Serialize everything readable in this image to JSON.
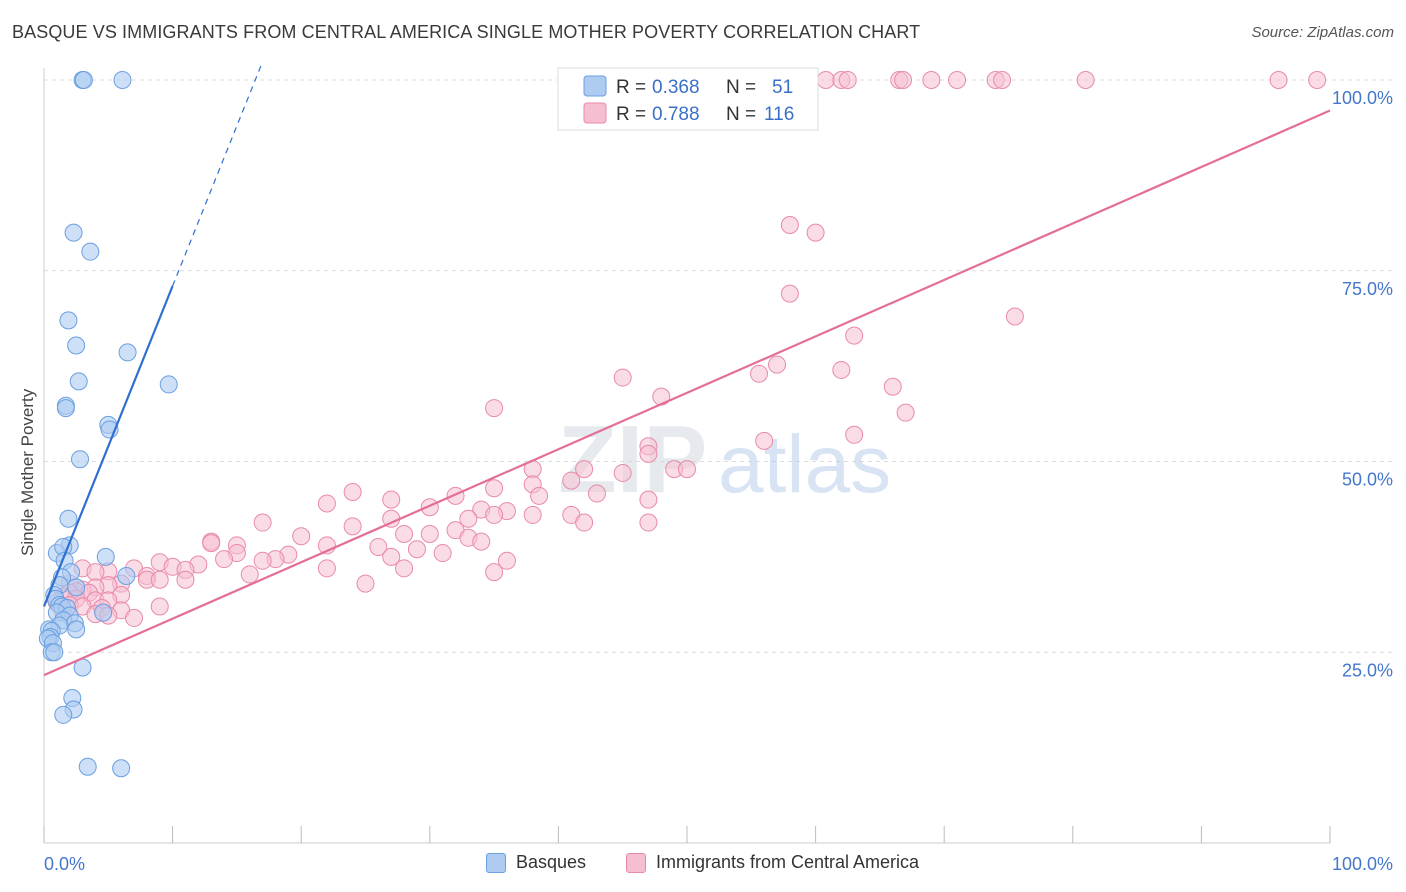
{
  "header": {
    "title": "BASQUE VS IMMIGRANTS FROM CENTRAL AMERICA SINGLE MOTHER POVERTY CORRELATION CHART",
    "source": "Source: ZipAtlas.com"
  },
  "watermark": {
    "zip": "ZIP",
    "atlas": "atlas"
  },
  "legend_top": [
    {
      "r_label": "R = ",
      "r_value": "0.368",
      "n_label": "N = ",
      "n_value": "51"
    },
    {
      "r_label": "R = ",
      "r_value": "0.788",
      "n_label": "N = ",
      "n_value": "116"
    }
  ],
  "legend_bottom": [
    {
      "label": "Basques"
    },
    {
      "label": "Immigrants from Central America"
    }
  ],
  "colors": {
    "basque_fill": "#aecbf2",
    "basque_stroke": "#6a9fe0",
    "basque_line": "#2f6fd1",
    "imm_fill": "#f6bfd1",
    "imm_stroke": "#e98aab",
    "imm_line": "#e36e98",
    "tick_label": "#4477cc",
    "grid": "#dcdcdc"
  },
  "chart_data": {
    "type": "scatter",
    "title": "BASQUE VS IMMIGRANTS FROM CENTRAL AMERICA SINGLE MOTHER POVERTY CORRELATION CHART",
    "xlabel": "",
    "ylabel": "Single Mother Poverty",
    "xlim": [
      0,
      1
    ],
    "ylim": [
      0.0,
      1.0
    ],
    "x_tick_labels": [
      "0.0%",
      "100.0%"
    ],
    "y_tick_labels": [
      {
        "value": 0.25,
        "label": "25.0%"
      },
      {
        "value": 0.5,
        "label": "50.0%"
      },
      {
        "value": 0.75,
        "label": "75.0%"
      },
      {
        "value": 1.0,
        "label": "100.0%"
      }
    ],
    "grid": true,
    "legend": "top-center",
    "series": [
      {
        "name": "Basques",
        "r": 0.368,
        "n": 51,
        "trend": {
          "x0": 0.0,
          "y0": 0.31,
          "x1": 0.1,
          "y1": 0.73,
          "dashed_to_x": 0.17
        },
        "points": [
          [
            0.03,
            1.0
          ],
          [
            0.031,
            1.0
          ],
          [
            0.061,
            1.0
          ],
          [
            0.023,
            0.8
          ],
          [
            0.036,
            0.775
          ],
          [
            0.019,
            0.685
          ],
          [
            0.025,
            0.652
          ],
          [
            0.065,
            0.643
          ],
          [
            0.027,
            0.605
          ],
          [
            0.097,
            0.601
          ],
          [
            0.017,
            0.573
          ],
          [
            0.017,
            0.57
          ],
          [
            0.05,
            0.548
          ],
          [
            0.051,
            0.542
          ],
          [
            0.028,
            0.503
          ],
          [
            0.019,
            0.425
          ],
          [
            0.02,
            0.39
          ],
          [
            0.01,
            0.38
          ],
          [
            0.015,
            0.388
          ],
          [
            0.048,
            0.375
          ],
          [
            0.016,
            0.37
          ],
          [
            0.021,
            0.355
          ],
          [
            0.014,
            0.348
          ],
          [
            0.064,
            0.35
          ],
          [
            0.025,
            0.335
          ],
          [
            0.012,
            0.338
          ],
          [
            0.008,
            0.325
          ],
          [
            0.009,
            0.32
          ],
          [
            0.012,
            0.312
          ],
          [
            0.014,
            0.31
          ],
          [
            0.018,
            0.308
          ],
          [
            0.046,
            0.302
          ],
          [
            0.01,
            0.302
          ],
          [
            0.02,
            0.298
          ],
          [
            0.015,
            0.292
          ],
          [
            0.024,
            0.288
          ],
          [
            0.012,
            0.285
          ],
          [
            0.004,
            0.28
          ],
          [
            0.006,
            0.278
          ],
          [
            0.025,
            0.28
          ],
          [
            0.005,
            0.27
          ],
          [
            0.003,
            0.268
          ],
          [
            0.007,
            0.262
          ],
          [
            0.006,
            0.25
          ],
          [
            0.008,
            0.25
          ],
          [
            0.03,
            0.23
          ],
          [
            0.022,
            0.19
          ],
          [
            0.023,
            0.175
          ],
          [
            0.015,
            0.168
          ],
          [
            0.034,
            0.1
          ],
          [
            0.06,
            0.098
          ]
        ]
      },
      {
        "name": "Immigrants from Central America",
        "r": 0.788,
        "n": 116,
        "trend": {
          "x0": 0.0,
          "y0": 0.22,
          "x1": 1.0,
          "y1": 0.96
        },
        "points": [
          [
            0.608,
            1.0
          ],
          [
            0.62,
            1.0
          ],
          [
            0.625,
            1.0
          ],
          [
            0.665,
            1.0
          ],
          [
            0.668,
            1.0
          ],
          [
            0.69,
            1.0
          ],
          [
            0.71,
            1.0
          ],
          [
            0.74,
            1.0
          ],
          [
            0.745,
            1.0
          ],
          [
            0.81,
            1.0
          ],
          [
            0.96,
            1.0
          ],
          [
            0.99,
            1.0
          ],
          [
            0.58,
            0.81
          ],
          [
            0.6,
            0.8
          ],
          [
            0.58,
            0.72
          ],
          [
            0.63,
            0.665
          ],
          [
            0.755,
            0.69
          ],
          [
            0.45,
            0.61
          ],
          [
            0.57,
            0.627
          ],
          [
            0.556,
            0.615
          ],
          [
            0.62,
            0.62
          ],
          [
            0.66,
            0.598
          ],
          [
            0.48,
            0.585
          ],
          [
            0.35,
            0.57
          ],
          [
            0.67,
            0.564
          ],
          [
            0.63,
            0.535
          ],
          [
            0.47,
            0.52
          ],
          [
            0.56,
            0.527
          ],
          [
            0.47,
            0.51
          ],
          [
            0.38,
            0.49
          ],
          [
            0.42,
            0.49
          ],
          [
            0.49,
            0.49
          ],
          [
            0.5,
            0.49
          ],
          [
            0.45,
            0.485
          ],
          [
            0.41,
            0.475
          ],
          [
            0.38,
            0.47
          ],
          [
            0.35,
            0.465
          ],
          [
            0.24,
            0.46
          ],
          [
            0.43,
            0.458
          ],
          [
            0.385,
            0.455
          ],
          [
            0.32,
            0.455
          ],
          [
            0.27,
            0.45
          ],
          [
            0.47,
            0.45
          ],
          [
            0.22,
            0.445
          ],
          [
            0.3,
            0.44
          ],
          [
            0.34,
            0.437
          ],
          [
            0.36,
            0.435
          ],
          [
            0.35,
            0.43
          ],
          [
            0.38,
            0.43
          ],
          [
            0.41,
            0.43
          ],
          [
            0.27,
            0.425
          ],
          [
            0.33,
            0.425
          ],
          [
            0.42,
            0.42
          ],
          [
            0.47,
            0.42
          ],
          [
            0.17,
            0.42
          ],
          [
            0.24,
            0.415
          ],
          [
            0.32,
            0.41
          ],
          [
            0.28,
            0.405
          ],
          [
            0.3,
            0.405
          ],
          [
            0.2,
            0.402
          ],
          [
            0.33,
            0.4
          ],
          [
            0.34,
            0.395
          ],
          [
            0.13,
            0.395
          ],
          [
            0.13,
            0.393
          ],
          [
            0.15,
            0.39
          ],
          [
            0.22,
            0.39
          ],
          [
            0.26,
            0.388
          ],
          [
            0.29,
            0.385
          ],
          [
            0.31,
            0.38
          ],
          [
            0.15,
            0.38
          ],
          [
            0.19,
            0.378
          ],
          [
            0.27,
            0.375
          ],
          [
            0.18,
            0.372
          ],
          [
            0.36,
            0.37
          ],
          [
            0.14,
            0.372
          ],
          [
            0.17,
            0.37
          ],
          [
            0.09,
            0.368
          ],
          [
            0.12,
            0.365
          ],
          [
            0.1,
            0.362
          ],
          [
            0.07,
            0.36
          ],
          [
            0.03,
            0.36
          ],
          [
            0.22,
            0.36
          ],
          [
            0.11,
            0.358
          ],
          [
            0.05,
            0.356
          ],
          [
            0.04,
            0.355
          ],
          [
            0.16,
            0.352
          ],
          [
            0.08,
            0.35
          ],
          [
            0.08,
            0.345
          ],
          [
            0.09,
            0.345
          ],
          [
            0.02,
            0.34
          ],
          [
            0.06,
            0.34
          ],
          [
            0.05,
            0.338
          ],
          [
            0.04,
            0.335
          ],
          [
            0.03,
            0.332
          ],
          [
            0.025,
            0.33
          ],
          [
            0.02,
            0.328
          ],
          [
            0.035,
            0.328
          ],
          [
            0.06,
            0.325
          ],
          [
            0.015,
            0.323
          ],
          [
            0.025,
            0.32
          ],
          [
            0.04,
            0.318
          ],
          [
            0.05,
            0.318
          ],
          [
            0.01,
            0.315
          ],
          [
            0.02,
            0.312
          ],
          [
            0.03,
            0.31
          ],
          [
            0.045,
            0.308
          ],
          [
            0.06,
            0.305
          ],
          [
            0.015,
            0.302
          ],
          [
            0.04,
            0.3
          ],
          [
            0.05,
            0.298
          ],
          [
            0.07,
            0.295
          ],
          [
            0.11,
            0.345
          ],
          [
            0.25,
            0.34
          ],
          [
            0.28,
            0.36
          ],
          [
            0.35,
            0.355
          ],
          [
            0.09,
            0.31
          ]
        ]
      }
    ]
  }
}
